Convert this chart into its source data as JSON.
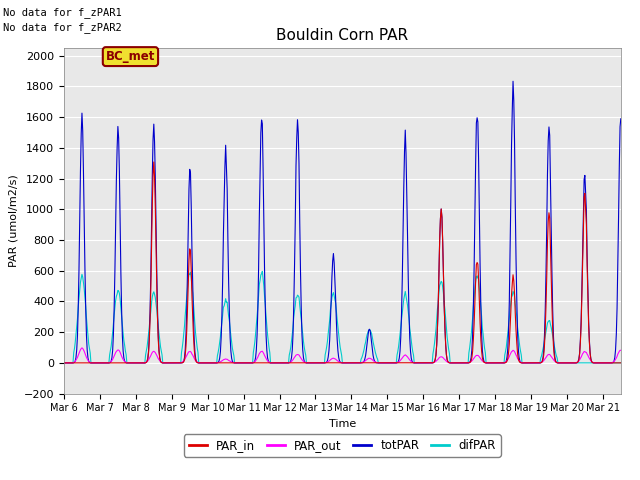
{
  "title": "Bouldin Corn PAR",
  "ylabel": "PAR (umol/m2/s)",
  "xlabel": "Time",
  "ylim": [
    -200,
    2050
  ],
  "bg_color": "#e8e8e8",
  "text_no_data1": "No data for f_zPAR1",
  "text_no_data2": "No data for f_zPAR2",
  "bc_met_label": "BC_met",
  "line_colors": {
    "PAR_in": "#dd0000",
    "PAR_out": "#ff00ff",
    "totPAR": "#0000cc",
    "difPAR": "#00cccc"
  },
  "xtick_labels": [
    "Mar 6",
    "Mar 7",
    "Mar 8",
    "Mar 9",
    "Mar 10",
    "Mar 11",
    "Mar 12",
    "Mar 13",
    "Mar 14",
    "Mar 15",
    "Mar 16",
    "Mar 17",
    "Mar 18",
    "Mar 19",
    "Mar 20",
    "Mar 21"
  ],
  "xtick_positions": [
    0,
    1,
    2,
    3,
    4,
    5,
    6,
    7,
    8,
    9,
    10,
    11,
    12,
    13,
    14,
    15
  ],
  "day_data": [
    {
      "tot": 1580,
      "dif": 560,
      "out": 95,
      "in": 0,
      "cloudy_am": false,
      "cloudy_mid": false
    },
    {
      "tot": 1550,
      "dif": 475,
      "out": 85,
      "in": 0,
      "cloudy_am": false,
      "cloudy_mid": false
    },
    {
      "tot": 1545,
      "dif": 460,
      "out": 75,
      "in": 1300,
      "cloudy_am": false,
      "cloudy_mid": false
    },
    {
      "tot": 1290,
      "dif": 590,
      "out": 75,
      "in": 760,
      "cloudy_am": true,
      "cloudy_mid": false
    },
    {
      "tot": 1390,
      "dif": 410,
      "out": 25,
      "in": 0,
      "cloudy_am": false,
      "cloudy_mid": false
    },
    {
      "tot": 1595,
      "dif": 585,
      "out": 75,
      "in": 0,
      "cloudy_am": false,
      "cloudy_mid": false
    },
    {
      "tot": 1598,
      "dif": 445,
      "out": 55,
      "in": 0,
      "cloudy_am": false,
      "cloudy_mid": false
    },
    {
      "tot": 700,
      "dif": 450,
      "out": 30,
      "in": 0,
      "cloudy_am": false,
      "cloudy_mid": true
    },
    {
      "tot": 220,
      "dif": 215,
      "out": 30,
      "in": 0,
      "cloudy_am": false,
      "cloudy_mid": false
    },
    {
      "tot": 1450,
      "dif": 445,
      "out": 50,
      "in": 0,
      "cloudy_am": false,
      "cloudy_mid": false
    },
    {
      "tot": 1010,
      "dif": 535,
      "out": 40,
      "in": 1010,
      "cloudy_am": false,
      "cloudy_mid": false
    },
    {
      "tot": 1660,
      "dif": 575,
      "out": 50,
      "in": 680,
      "cloudy_am": false,
      "cloudy_mid": false
    },
    {
      "tot": 1790,
      "dif": 455,
      "out": 80,
      "in": 560,
      "cloudy_am": false,
      "cloudy_mid": false
    },
    {
      "tot": 1540,
      "dif": 275,
      "out": 55,
      "in": 980,
      "cloudy_am": false,
      "cloudy_mid": false
    },
    {
      "tot": 1250,
      "dif": 0,
      "out": 75,
      "in": 1130,
      "cloudy_am": false,
      "cloudy_mid": false
    },
    {
      "tot": 1650,
      "dif": 0,
      "out": 85,
      "in": 0,
      "cloudy_am": false,
      "cloudy_mid": false
    }
  ]
}
